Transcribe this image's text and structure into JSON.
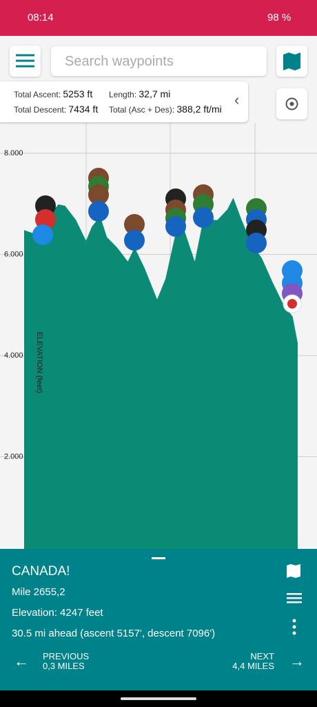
{
  "status_bar": {
    "time": "08:14",
    "battery": "98 %"
  },
  "search": {
    "placeholder": "Search waypoints"
  },
  "stats": {
    "ascent_label": "Total Ascent:",
    "ascent": "5253 ft",
    "length_label": "Length:",
    "length": "32,7 mi",
    "descent_label": "Total Descent:",
    "descent": "7434 ft",
    "total_label": "Total (Asc + Des):",
    "total": "388,2 ft/mi"
  },
  "chart_data": {
    "type": "area",
    "y_label": "ELEVATION (feet)",
    "x": [
      0,
      1.2,
      2.9,
      4.1,
      4.9,
      6.2,
      7.4,
      8.1,
      9.1,
      9.9,
      11.1,
      12.4,
      13.2,
      14.4,
      15.9,
      16.9,
      18.1,
      19.0,
      20.4,
      21.4,
      23.1,
      24.3,
      25.0,
      26.0,
      27.2,
      28.4,
      29.7,
      30.9,
      32.1,
      32.7
    ],
    "series": [
      {
        "name": "Elevation",
        "color": "#0b8a76",
        "values": [
          6480,
          6410,
          6750,
          6990,
          6960,
          6680,
          6270,
          6550,
          6750,
          6340,
          6140,
          5860,
          6140,
          5730,
          5110,
          5520,
          6410,
          6550,
          5860,
          6680,
          6680,
          6890,
          7120,
          6680,
          6210,
          5930,
          5450,
          5040,
          4770,
          4250
        ]
      }
    ],
    "xlim": [
      0,
      32.7
    ],
    "ylim": [
      0,
      8600
    ],
    "yticks": [
      {
        "value": 2000,
        "label": "2.000"
      },
      {
        "value": 4000,
        "label": "4.000"
      },
      {
        "value": 6000,
        "label": "6.000"
      },
      {
        "value": 8000,
        "label": "8.000"
      }
    ],
    "grid": true
  },
  "panel": {
    "title": "CANADA!",
    "mile": "Mile 2655,2",
    "elevation": "Elevation: 4247 feet",
    "ahead": "30.5 mi ahead (ascent 5157', descent 7096')",
    "prev": "PREVIOUS",
    "prev_dist": "0,3 MILES",
    "next": "NEXT",
    "next_dist": "4,4 MILES"
  }
}
